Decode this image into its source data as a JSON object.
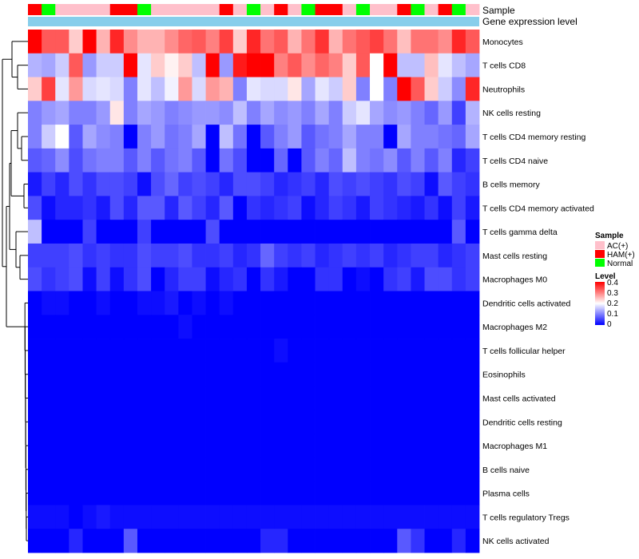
{
  "chart_data": {
    "type": "heatmap",
    "title": "",
    "column_annotations": [
      {
        "name": "Sample",
        "label": "Sample"
      },
      {
        "name": "Gene expression level",
        "label": "Gene expression level"
      }
    ],
    "sample_groups": [
      "HAM(+)",
      "Normal",
      "AC(+)",
      "AC(+)",
      "AC(+)",
      "AC(+)",
      "HAM(+)",
      "HAM(+)",
      "Normal",
      "AC(+)",
      "AC(+)",
      "AC(+)",
      "AC(+)",
      "AC(+)",
      "HAM(+)",
      "AC(+)",
      "Normal",
      "AC(+)",
      "HAM(+)",
      "AC(+)",
      "Normal",
      "HAM(+)",
      "HAM(+)",
      "AC(+)",
      "Normal",
      "AC(+)",
      "AC(+)",
      "HAM(+)",
      "Normal",
      "AC(+)",
      "HAM(+)",
      "Normal",
      "AC(+)"
    ],
    "rows": [
      "Monocytes",
      "T cells CD8",
      "Neutrophils",
      "NK cells resting",
      "T cells CD4 memory resting",
      "T cells CD4 naive",
      "B cells memory",
      "T cells CD4 memory activated",
      "T cells gamma delta",
      "Mast cells resting",
      "Macrophages M0",
      "Dendritic cells activated",
      "Macrophages M2",
      "T cells follicular helper",
      "Eosinophils",
      "Mast cells activated",
      "Dendritic cells resting",
      "Macrophages M1",
      "B cells naive",
      "Plasma cells",
      "T cells regulatory  Tregs",
      "NK cells activated"
    ],
    "values": [
      [
        0.4,
        0.33,
        0.33,
        0.24,
        0.4,
        0.26,
        0.37,
        0.29,
        0.26,
        0.26,
        0.29,
        0.32,
        0.33,
        0.3,
        0.35,
        0.24,
        0.37,
        0.31,
        0.33,
        0.26,
        0.31,
        0.36,
        0.26,
        0.31,
        0.33,
        0.35,
        0.31,
        0.25,
        0.31,
        0.31,
        0.29,
        0.37,
        0.33
      ],
      [
        0.14,
        0.13,
        0.16,
        0.33,
        0.12,
        0.16,
        0.16,
        0.4,
        0.18,
        0.24,
        0.21,
        0.24,
        0.15,
        0.4,
        0.12,
        0.38,
        0.4,
        0.4,
        0.3,
        0.33,
        0.29,
        0.32,
        0.3,
        0.24,
        0.33,
        0.2,
        0.4,
        0.15,
        0.15,
        0.25,
        0.18,
        0.15,
        0.13
      ],
      [
        0.24,
        0.35,
        0.18,
        0.28,
        0.17,
        0.18,
        0.17,
        0.1,
        0.18,
        0.15,
        0.19,
        0.28,
        0.17,
        0.28,
        0.26,
        0.1,
        0.18,
        0.17,
        0.17,
        0.22,
        0.13,
        0.18,
        0.16,
        0.24,
        0.1,
        0.2,
        0.1,
        0.4,
        0.33,
        0.24,
        0.16,
        0.11,
        0.37
      ],
      [
        0.1,
        0.12,
        0.13,
        0.1,
        0.1,
        0.12,
        0.22,
        0.1,
        0.13,
        0.12,
        0.1,
        0.11,
        0.12,
        0.12,
        0.11,
        0.15,
        0.1,
        0.13,
        0.11,
        0.12,
        0.1,
        0.13,
        0.1,
        0.16,
        0.18,
        0.13,
        0.11,
        0.12,
        0.1,
        0.08,
        0.12,
        0.05,
        0.14
      ],
      [
        0.1,
        0.16,
        0.2,
        0.07,
        0.13,
        0.11,
        0.1,
        0.0,
        0.1,
        0.12,
        0.09,
        0.1,
        0.13,
        0.0,
        0.15,
        0.09,
        0.0,
        0.07,
        0.1,
        0.12,
        0.07,
        0.09,
        0.1,
        0.13,
        0.1,
        0.1,
        0.0,
        0.13,
        0.1,
        0.1,
        0.09,
        0.08,
        0.13
      ],
      [
        0.07,
        0.08,
        0.11,
        0.06,
        0.09,
        0.1,
        0.1,
        0.07,
        0.1,
        0.07,
        0.09,
        0.1,
        0.07,
        0.0,
        0.09,
        0.06,
        0.0,
        0.0,
        0.08,
        0.0,
        0.07,
        0.1,
        0.08,
        0.15,
        0.1,
        0.09,
        0.11,
        0.07,
        0.1,
        0.07,
        0.1,
        0.03,
        0.05
      ],
      [
        0.02,
        0.05,
        0.03,
        0.06,
        0.04,
        0.06,
        0.06,
        0.05,
        0.01,
        0.06,
        0.08,
        0.05,
        0.06,
        0.05,
        0.03,
        0.06,
        0.06,
        0.05,
        0.03,
        0.04,
        0.05,
        0.03,
        0.06,
        0.05,
        0.06,
        0.05,
        0.04,
        0.06,
        0.05,
        0.01,
        0.07,
        0.05,
        0.04
      ],
      [
        0.06,
        0.01,
        0.03,
        0.03,
        0.04,
        0.02,
        0.06,
        0.03,
        0.07,
        0.07,
        0.03,
        0.07,
        0.05,
        0.03,
        0.07,
        0.0,
        0.04,
        0.03,
        0.04,
        0.05,
        0.01,
        0.03,
        0.05,
        0.04,
        0.02,
        0.05,
        0.04,
        0.03,
        0.02,
        0.04,
        0.01,
        0.05,
        0.02
      ],
      [
        0.15,
        0.0,
        0.0,
        0.0,
        0.05,
        0.0,
        0.0,
        0.0,
        0.05,
        0.0,
        0.0,
        0.0,
        0.0,
        0.06,
        0.0,
        0.0,
        0.0,
        0.0,
        0.0,
        0.0,
        0.0,
        0.0,
        0.0,
        0.0,
        0.0,
        0.0,
        0.0,
        0.0,
        0.0,
        0.0,
        0.0,
        0.07,
        0.0
      ],
      [
        0.05,
        0.05,
        0.05,
        0.06,
        0.04,
        0.05,
        0.04,
        0.04,
        0.06,
        0.05,
        0.05,
        0.06,
        0.04,
        0.04,
        0.05,
        0.03,
        0.04,
        0.08,
        0.05,
        0.04,
        0.05,
        0.03,
        0.04,
        0.05,
        0.04,
        0.05,
        0.03,
        0.04,
        0.05,
        0.05,
        0.03,
        0.04,
        0.05
      ],
      [
        0.06,
        0.04,
        0.05,
        0.06,
        0.01,
        0.05,
        0.01,
        0.04,
        0.06,
        0.0,
        0.03,
        0.05,
        0.05,
        0.01,
        0.03,
        0.04,
        0.0,
        0.04,
        0.02,
        0.0,
        0.0,
        0.04,
        0.04,
        0.0,
        0.01,
        0.0,
        0.04,
        0.05,
        0.02,
        0.06,
        0.06,
        0.04,
        0.05
      ],
      [
        0.0,
        0.01,
        0.01,
        0.0,
        0.0,
        0.01,
        0.0,
        0.0,
        0.01,
        0.01,
        0.02,
        0.0,
        0.01,
        0.0,
        0.01,
        0.0,
        0.0,
        0.0,
        0.0,
        0.0,
        0.0,
        0.0,
        0.0,
        0.0,
        0.0,
        0.0,
        0.0,
        0.0,
        0.0,
        0.0,
        0.0,
        0.0,
        0.0
      ],
      [
        0.0,
        0.0,
        0.0,
        0.0,
        0.0,
        0.0,
        0.0,
        0.0,
        0.0,
        0.0,
        0.0,
        0.01,
        0.0,
        0.0,
        0.0,
        0.0,
        0.0,
        0.0,
        0.0,
        0.0,
        0.0,
        0.0,
        0.0,
        0.0,
        0.0,
        0.0,
        0.0,
        0.0,
        0.0,
        0.0,
        0.0,
        0.0,
        0.0
      ],
      [
        0.0,
        0.0,
        0.0,
        0.0,
        0.0,
        0.0,
        0.0,
        0.0,
        0.0,
        0.0,
        0.0,
        0.0,
        0.0,
        0.0,
        0.0,
        0.0,
        0.0,
        0.0,
        0.01,
        0.0,
        0.0,
        0.0,
        0.0,
        0.0,
        0.0,
        0.0,
        0.0,
        0.0,
        0.0,
        0.0,
        0.0,
        0.0,
        0.0
      ],
      [
        0.0,
        0.0,
        0.0,
        0.0,
        0.0,
        0.0,
        0.0,
        0.0,
        0.0,
        0.0,
        0.0,
        0.0,
        0.0,
        0.0,
        0.0,
        0.0,
        0.0,
        0.0,
        0.0,
        0.0,
        0.0,
        0.0,
        0.0,
        0.0,
        0.0,
        0.0,
        0.0,
        0.0,
        0.0,
        0.0,
        0.0,
        0.0,
        0.0
      ],
      [
        0.0,
        0.0,
        0.0,
        0.0,
        0.0,
        0.0,
        0.0,
        0.0,
        0.0,
        0.0,
        0.0,
        0.0,
        0.0,
        0.0,
        0.0,
        0.0,
        0.0,
        0.0,
        0.0,
        0.0,
        0.0,
        0.0,
        0.0,
        0.0,
        0.0,
        0.0,
        0.0,
        0.0,
        0.0,
        0.0,
        0.0,
        0.0,
        0.0
      ],
      [
        0.0,
        0.0,
        0.0,
        0.0,
        0.0,
        0.0,
        0.0,
        0.0,
        0.0,
        0.0,
        0.0,
        0.0,
        0.0,
        0.0,
        0.0,
        0.0,
        0.0,
        0.0,
        0.0,
        0.0,
        0.0,
        0.0,
        0.0,
        0.0,
        0.0,
        0.0,
        0.0,
        0.0,
        0.0,
        0.0,
        0.0,
        0.0,
        0.0
      ],
      [
        0.0,
        0.0,
        0.0,
        0.0,
        0.0,
        0.0,
        0.0,
        0.0,
        0.0,
        0.0,
        0.0,
        0.0,
        0.0,
        0.0,
        0.0,
        0.0,
        0.0,
        0.0,
        0.0,
        0.0,
        0.0,
        0.0,
        0.0,
        0.0,
        0.0,
        0.0,
        0.0,
        0.0,
        0.0,
        0.0,
        0.0,
        0.0,
        0.0
      ],
      [
        0.0,
        0.0,
        0.0,
        0.0,
        0.0,
        0.0,
        0.0,
        0.0,
        0.0,
        0.0,
        0.0,
        0.0,
        0.0,
        0.0,
        0.0,
        0.0,
        0.0,
        0.0,
        0.0,
        0.0,
        0.0,
        0.0,
        0.0,
        0.0,
        0.0,
        0.0,
        0.0,
        0.0,
        0.0,
        0.0,
        0.0,
        0.0,
        0.0
      ],
      [
        0.0,
        0.0,
        0.0,
        0.0,
        0.0,
        0.0,
        0.0,
        0.0,
        0.0,
        0.0,
        0.0,
        0.0,
        0.0,
        0.0,
        0.0,
        0.0,
        0.0,
        0.0,
        0.0,
        0.0,
        0.0,
        0.0,
        0.0,
        0.0,
        0.0,
        0.0,
        0.0,
        0.0,
        0.0,
        0.0,
        0.0,
        0.0,
        0.0
      ],
      [
        0.01,
        0.01,
        0.01,
        0.0,
        0.01,
        0.02,
        0.01,
        0.01,
        0.01,
        0.01,
        0.01,
        0.01,
        0.01,
        0.01,
        0.01,
        0.01,
        0.01,
        0.01,
        0.01,
        0.01,
        0.01,
        0.01,
        0.01,
        0.01,
        0.01,
        0.01,
        0.01,
        0.01,
        0.01,
        0.01,
        0.01,
        0.01,
        0.01
      ],
      [
        0.0,
        0.0,
        0.0,
        0.03,
        0.0,
        0.0,
        0.0,
        0.07,
        0.0,
        0.0,
        0.0,
        0.0,
        0.0,
        0.0,
        0.0,
        0.0,
        0.0,
        0.03,
        0.03,
        0.0,
        0.0,
        0.0,
        0.0,
        0.0,
        0.0,
        0.0,
        0.0,
        0.07,
        0.04,
        0.0,
        0.0,
        0.03,
        0.0
      ]
    ],
    "color_scale": {
      "min": 0,
      "max": 0.4,
      "low": "#0000FF",
      "mid": "#FFFFFF",
      "high": "#FF0000",
      "mid_value": 0.2
    },
    "legend": {
      "sample_title": "Sample",
      "sample_items": [
        {
          "label": "AC(+)",
          "color": "#FFC0CB"
        },
        {
          "label": "HAM(+)",
          "color": "#FF0000"
        },
        {
          "label": "Normal",
          "color": "#00FF00"
        }
      ],
      "level_title": "Level",
      "level_ticks": [
        "0.4",
        "0.3",
        "0.2",
        "0.1",
        "0"
      ],
      "placement": "right"
    },
    "expression_bar_color": "#87CEEB",
    "row_dendrogram": true
  }
}
